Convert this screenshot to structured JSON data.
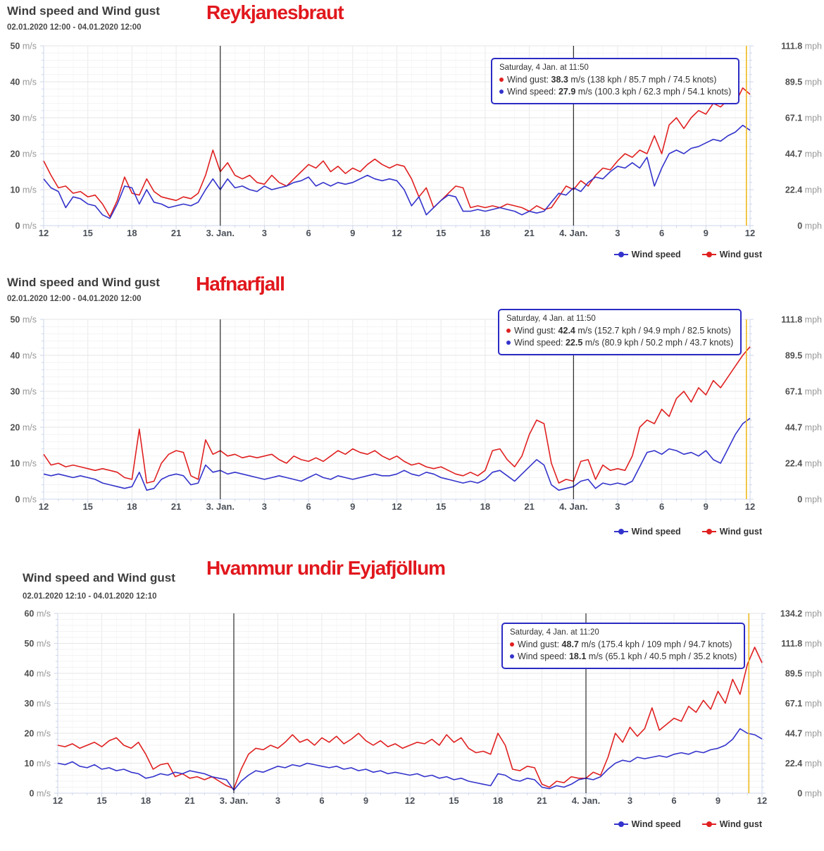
{
  "colors": {
    "wind_speed": "#3333cc",
    "wind_gust": "#e02020",
    "station_name": "#e1171d",
    "current_time_line": "#efb611",
    "day_separator": "#000000",
    "tooltip_border": "#2b2bc4"
  },
  "charts": [
    {
      "title": "Wind speed and Wind gust",
      "station": "Reykjanesbraut",
      "date_range": "02.01.2020 12:00 - 04.01.2020 12:00",
      "tooltip": {
        "time": "Saturday, 4 Jan. at 11:50",
        "rows": [
          {
            "label": "Wind gust:",
            "value": "38.3",
            "detail": "m/s (138 kph / 85.7 mph / 74.5 knots)"
          },
          {
            "label": "Wind speed:",
            "value": "27.9",
            "detail": "m/s (100.3 kph / 62.3 mph / 54.1 knots)"
          }
        ]
      },
      "legend": [
        {
          "label": "Wind speed",
          "color": "#3333cc"
        },
        {
          "label": "Wind gust",
          "color": "#e02020"
        }
      ],
      "chart_data": {
        "type": "line",
        "x_hours_span": 48,
        "sample_interval_hours": 0.5,
        "x_tick_labels": [
          "12",
          "15",
          "18",
          "21",
          "3. Jan.",
          "3",
          "6",
          "9",
          "12",
          "15",
          "18",
          "21",
          "4. Jan.",
          "3",
          "6",
          "9",
          "12"
        ],
        "y_left_unit": "m/s",
        "y_right_unit": "mph",
        "y_left_ticks": [
          "0",
          "10",
          "20",
          "30",
          "40",
          "50"
        ],
        "y_right_ticks": [
          "0",
          "22.4",
          "44.7",
          "67.1",
          "89.5",
          "111.8"
        ],
        "ylim": [
          0,
          50
        ],
        "day_separator_hours": [
          12,
          36
        ],
        "current_time_hour": 47.75,
        "series": [
          {
            "name": "Wind gust",
            "color": "#e02020",
            "values": [
              18,
              14,
              10.5,
              11,
              9,
              9.5,
              8,
              8.5,
              6,
              2.5,
              7,
              13.5,
              9,
              8.5,
              13,
              9.5,
              8,
              7.5,
              7,
              8,
              7.5,
              9,
              14,
              21,
              15,
              17.5,
              14,
              13,
              14,
              12,
              11.5,
              14,
              12,
              11,
              13,
              15,
              17,
              16,
              18,
              15,
              16.5,
              14.5,
              16,
              15,
              17,
              18.5,
              17,
              16,
              17,
              16.5,
              13,
              8,
              10.5,
              5,
              7,
              9,
              11,
              10.5,
              5,
              5.5,
              5,
              5.5,
              5,
              6,
              5.5,
              5,
              4,
              5.5,
              4.5,
              5,
              8,
              11,
              10,
              12.5,
              11,
              14,
              16,
              15.5,
              18,
              20,
              19,
              21,
              20,
              25,
              20,
              28,
              30,
              27,
              30,
              32,
              31,
              34,
              33,
              35,
              34,
              38.3,
              36.5
            ]
          },
          {
            "name": "Wind speed",
            "color": "#3333cc",
            "values": [
              13,
              10.5,
              9.5,
              5,
              8,
              7.5,
              6,
              5.5,
              3,
              2,
              6,
              11,
              10.5,
              6,
              10,
              6.5,
              6,
              5,
              5.5,
              6,
              5.5,
              6.5,
              10,
              13,
              10,
              13,
              10.5,
              11,
              10,
              9.5,
              11,
              10,
              10.5,
              11,
              12,
              12.5,
              13.5,
              11,
              12,
              11,
              12,
              11.5,
              12,
              13,
              14,
              13,
              12.5,
              13,
              12.5,
              10,
              5.5,
              8,
              3,
              5,
              7,
              8.5,
              8,
              4,
              4,
              4.5,
              4,
              4.5,
              5,
              4.5,
              4,
              3,
              4,
              3.5,
              4,
              6.5,
              9,
              8.5,
              10.5,
              9.5,
              12,
              13.5,
              13,
              15,
              16.5,
              16,
              17.5,
              16,
              19,
              11,
              16,
              20,
              21,
              20,
              21.5,
              22,
              23,
              24,
              23.5,
              25,
              26,
              27.9,
              26.5
            ]
          }
        ]
      }
    },
    {
      "title": "Wind speed and Wind gust",
      "station": "Hafnarfjall",
      "date_range": "02.01.2020 12:00 - 04.01.2020 12:00",
      "tooltip": {
        "time": "Saturday, 4 Jan. at 11:50",
        "rows": [
          {
            "label": "Wind gust:",
            "value": "42.4",
            "detail": "m/s (152.7 kph / 94.9 mph / 82.5 knots)"
          },
          {
            "label": "Wind speed:",
            "value": "22.5",
            "detail": "m/s (80.9 kph / 50.2 mph / 43.7 knots)"
          }
        ]
      },
      "legend": [
        {
          "label": "Wind speed",
          "color": "#3333cc"
        },
        {
          "label": "Wind gust",
          "color": "#e02020"
        }
      ],
      "chart_data": {
        "type": "line",
        "x_hours_span": 48,
        "sample_interval_hours": 0.5,
        "x_tick_labels": [
          "12",
          "15",
          "18",
          "21",
          "3. Jan.",
          "3",
          "6",
          "9",
          "12",
          "15",
          "18",
          "21",
          "4. Jan.",
          "3",
          "6",
          "9",
          "12"
        ],
        "y_left_unit": "m/s",
        "y_right_unit": "mph",
        "y_left_ticks": [
          "0",
          "10",
          "20",
          "30",
          "40",
          "50"
        ],
        "y_right_ticks": [
          "0",
          "22.4",
          "44.7",
          "67.1",
          "89.5",
          "111.8"
        ],
        "ylim": [
          0,
          50
        ],
        "day_separator_hours": [
          12,
          36
        ],
        "current_time_hour": 47.75,
        "series": [
          {
            "name": "Wind gust",
            "color": "#e02020",
            "values": [
              12.5,
              9.5,
              10,
              9,
              9.5,
              9,
              8.5,
              8,
              8.5,
              8,
              7.5,
              6,
              5.5,
              19.5,
              4.5,
              5,
              10,
              12.5,
              13.5,
              13,
              6.5,
              5.5,
              16.5,
              12.5,
              13.5,
              12,
              12.5,
              11.5,
              12,
              11.5,
              12,
              12.5,
              11,
              10,
              12,
              11,
              10.5,
              11.5,
              10.5,
              12,
              13.5,
              12.5,
              14,
              13,
              12.5,
              13.5,
              12,
              11,
              12,
              10.5,
              9.5,
              10,
              9,
              8.5,
              9,
              8,
              7,
              6.5,
              7.5,
              6.5,
              8,
              13.5,
              14,
              11,
              9,
              12,
              18,
              22,
              21,
              10,
              4.5,
              5.5,
              5,
              10.5,
              11,
              5.5,
              9.5,
              8,
              8.5,
              8,
              12,
              20,
              22,
              21,
              25,
              23,
              28,
              30,
              27,
              31,
              29,
              33,
              31,
              34,
              37,
              40,
              42.4
            ]
          },
          {
            "name": "Wind speed",
            "color": "#3333cc",
            "values": [
              7,
              6.5,
              7,
              6.5,
              6,
              6.5,
              6,
              5.5,
              4.5,
              4,
              3.5,
              3,
              3.5,
              7.5,
              2.5,
              3,
              5.5,
              6.5,
              7,
              6.5,
              4,
              4.5,
              9.5,
              7.5,
              8,
              7,
              7.5,
              7,
              6.5,
              6,
              5.5,
              6,
              6.5,
              6,
              5.5,
              5,
              6,
              7,
              6,
              5.5,
              6.5,
              6,
              5.5,
              6,
              6.5,
              7,
              6.5,
              6.5,
              7,
              8,
              7,
              6.5,
              7.5,
              7,
              6,
              5.5,
              5,
              4.5,
              5,
              4.5,
              5.5,
              7.5,
              8,
              6.5,
              5,
              7,
              9,
              11,
              9.5,
              4,
              2.5,
              3,
              3.5,
              5,
              5.5,
              3,
              4.5,
              4,
              4.5,
              4,
              5,
              9,
              13,
              13.5,
              12.5,
              14,
              13.5,
              12.5,
              13,
              12,
              13.5,
              11,
              10,
              14,
              18,
              21,
              22.5
            ]
          }
        ]
      }
    },
    {
      "title": "Wind speed and Wind gust",
      "station": "Hvammur undir Eyjafjöllum",
      "date_range": "02.01.2020 12:10 - 04.01.2020 12:10",
      "tooltip": {
        "time": "Saturday, 4 Jan. at 11:20",
        "rows": [
          {
            "label": "Wind gust:",
            "value": "48.7",
            "detail": "m/s (175.4 kph / 109 mph / 94.7 knots)"
          },
          {
            "label": "Wind speed:",
            "value": "18.1",
            "detail": "m/s (65.1 kph / 40.5 mph / 35.2 knots)"
          }
        ]
      },
      "legend": [
        {
          "label": "Wind speed",
          "color": "#3333cc"
        },
        {
          "label": "Wind gust",
          "color": "#e02020"
        }
      ],
      "chart_data": {
        "type": "line",
        "x_hours_span": 48,
        "sample_interval_hours": 0.5,
        "x_tick_labels": [
          "12",
          "15",
          "18",
          "21",
          "3. Jan.",
          "3",
          "6",
          "9",
          "12",
          "15",
          "18",
          "21",
          "4. Jan.",
          "3",
          "6",
          "9",
          "12"
        ],
        "y_left_unit": "m/s",
        "y_right_unit": "mph",
        "y_left_ticks": [
          "0",
          "10",
          "20",
          "30",
          "40",
          "50",
          "60"
        ],
        "y_right_ticks": [
          "0",
          "22.4",
          "44.7",
          "67.1",
          "89.5",
          "111.8",
          "134.2"
        ],
        "ylim": [
          0,
          60
        ],
        "day_separator_hours": [
          12,
          36
        ],
        "current_time_hour": 47.1,
        "series": [
          {
            "name": "Wind gust",
            "color": "#e02020",
            "values": [
              16,
              15.5,
              16.5,
              15,
              16,
              17,
              15.5,
              17.5,
              18.5,
              16,
              15,
              17,
              13,
              8,
              9.5,
              10,
              5.5,
              6.5,
              5,
              5.5,
              4.5,
              5.5,
              4,
              2.5,
              1.5,
              8,
              13,
              15,
              14.5,
              16,
              15,
              17,
              19.5,
              17,
              18,
              16,
              18.5,
              17,
              19,
              16.5,
              18,
              20,
              17.5,
              16,
              17.5,
              15.5,
              16.5,
              15,
              16,
              17,
              16.5,
              18,
              16,
              19.5,
              17,
              18.5,
              15,
              13.5,
              14,
              13,
              20,
              16,
              8,
              7.5,
              9,
              8.5,
              3,
              2,
              4,
              3.5,
              5.5,
              5,
              5,
              7,
              6,
              12,
              20,
              17,
              22,
              19,
              21.5,
              28.5,
              21,
              23,
              25,
              24,
              29,
              27,
              31,
              28,
              34,
              30,
              38,
              33,
              43,
              48.7,
              43.5
            ]
          },
          {
            "name": "Wind speed",
            "color": "#3333cc",
            "values": [
              10,
              9.5,
              10.5,
              9,
              8.5,
              9.5,
              8,
              8.5,
              7.5,
              8,
              7,
              6.5,
              5,
              5.5,
              6.5,
              6,
              7,
              6.5,
              7.5,
              7,
              6.5,
              5.5,
              5,
              4.5,
              1,
              4,
              6,
              7.5,
              7,
              8,
              9,
              8.5,
              9.5,
              9,
              10,
              9.5,
              9,
              8.5,
              9,
              8,
              8.5,
              7.5,
              8,
              7,
              7.5,
              6.5,
              7,
              6.5,
              6,
              6.5,
              5.5,
              6,
              5,
              5.5,
              4.5,
              5,
              4,
              3.5,
              3,
              2.5,
              6.5,
              6,
              4.5,
              4,
              5,
              4.5,
              2,
              1.5,
              2.5,
              2,
              3,
              4.5,
              5,
              4.5,
              5.5,
              8,
              10,
              11,
              10.5,
              12,
              11.5,
              12,
              12.5,
              12,
              13,
              13.5,
              13,
              14,
              13.5,
              14.5,
              15,
              16,
              18,
              21.5,
              20,
              19.5,
              18.1
            ]
          }
        ]
      }
    }
  ]
}
